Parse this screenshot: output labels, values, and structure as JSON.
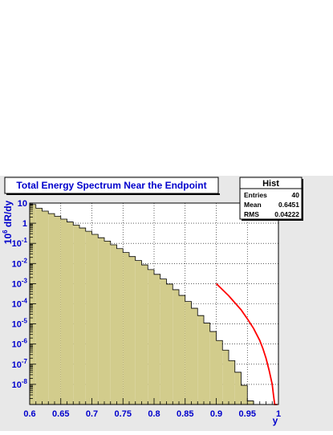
{
  "chart_data": {
    "type": "bar",
    "title": "Total Energy Spectrum Near the Endpoint",
    "xlabel": "y",
    "ylabel": "10^6 dR/dy",
    "xlim": [
      0.6,
      1.0
    ],
    "ylog": true,
    "ylim_log10": [
      -9,
      1
    ],
    "grid": true,
    "bin_width": 0.01,
    "x_ticks": [
      "0.6",
      "0.65",
      "0.7",
      "0.75",
      "0.8",
      "0.85",
      "0.9",
      "0.95",
      "1"
    ],
    "y_ticks": [
      {
        "base": "10",
        "exp": ""
      },
      {
        "base": "1",
        "exp": ""
      },
      {
        "base": "10",
        "exp": "-1"
      },
      {
        "base": "10",
        "exp": "-2"
      },
      {
        "base": "10",
        "exp": "-3"
      },
      {
        "base": "10",
        "exp": "-4"
      },
      {
        "base": "10",
        "exp": "-5"
      },
      {
        "base": "10",
        "exp": "-6"
      },
      {
        "base": "10",
        "exp": "-7"
      },
      {
        "base": "10",
        "exp": "-8"
      }
    ],
    "bin_edges_x": [
      0.6,
      0.61,
      0.62,
      0.63,
      0.64,
      0.65,
      0.66,
      0.67,
      0.68,
      0.69,
      0.7,
      0.71,
      0.72,
      0.73,
      0.74,
      0.75,
      0.76,
      0.77,
      0.78,
      0.79,
      0.8,
      0.81,
      0.82,
      0.83,
      0.84,
      0.85,
      0.86,
      0.87,
      0.88,
      0.89,
      0.9,
      0.91,
      0.92,
      0.93,
      0.94,
      0.95,
      0.96,
      0.97,
      0.98,
      0.99,
      1.0
    ],
    "values": [
      8.5,
      5.5,
      4.0,
      3.0,
      2.2,
      1.6,
      1.15,
      0.8,
      0.58,
      0.4,
      0.28,
      0.19,
      0.13,
      0.085,
      0.055,
      0.035,
      0.022,
      0.014,
      0.0085,
      0.005,
      0.0029,
      0.0017,
      0.00095,
      0.0005,
      0.00026,
      0.00013,
      6e-05,
      2.6e-05,
      1.1e-05,
      4.2e-06,
      1.5e-06,
      5e-07,
      1.5e-07,
      4e-08,
      9e-09,
      1.5e-09,
      1e-10,
      1e-10,
      1e-10,
      1e-10
    ],
    "fit": {
      "color": "#ff0000",
      "x": [
        0.9,
        0.92,
        0.94,
        0.95,
        0.96,
        0.97,
        0.975,
        0.98,
        0.985,
        0.99,
        0.992,
        0.994,
        0.996,
        0.998
      ],
      "y": [
        0.001,
        0.00025,
        5e-05,
        1.8e-05,
        6e-06,
        1.5e-06,
        6e-07,
        2e-07,
        5e-08,
        1e-08,
        3e-09,
        5e-10,
        1e-10,
        1e-10
      ]
    },
    "stats": {
      "title": "Hist",
      "rows": [
        {
          "label": "Entries",
          "value": "40"
        },
        {
          "label": "Mean",
          "value": "0.6451"
        },
        {
          "label": "RMS",
          "value": "0.04222"
        }
      ]
    },
    "colors": {
      "fill": "#d2cc8c",
      "axis_text": "#0000cc",
      "frame_bg": "#e8e8e8",
      "fit": "#ff0000"
    }
  }
}
